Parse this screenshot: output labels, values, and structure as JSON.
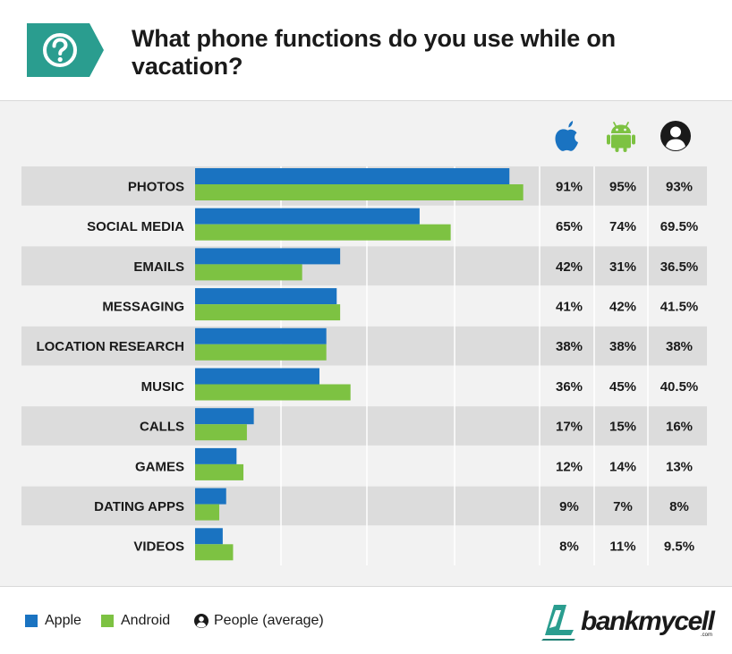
{
  "header": {
    "title": "What phone functions do you use while on vacation?",
    "badge_icon": "question-mark-icon",
    "badge_color": "#2a9d8f"
  },
  "chart_data": {
    "type": "bar",
    "orientation": "horizontal",
    "categories": [
      "PHOTOS",
      "SOCIAL MEDIA",
      "EMAILS",
      "MESSAGING",
      "LOCATION RESEARCH",
      "MUSIC",
      "CALLS",
      "GAMES",
      "DATING APPS",
      "VIDEOS"
    ],
    "series": [
      {
        "name": "Apple",
        "color": "#1a73c1",
        "values": [
          91,
          65,
          42,
          41,
          38,
          36,
          17,
          12,
          9,
          8
        ]
      },
      {
        "name": "Android",
        "color": "#7dc242",
        "values": [
          95,
          74,
          31,
          42,
          38,
          45,
          15,
          14,
          7,
          11
        ]
      }
    ],
    "table": {
      "column_icons": [
        "apple-icon",
        "android-icon",
        "person-icon"
      ],
      "apple": [
        "91%",
        "65%",
        "42%",
        "41%",
        "38%",
        "36%",
        "17%",
        "12%",
        "9%",
        "8%"
      ],
      "android": [
        "95%",
        "74%",
        "31%",
        "42%",
        "38%",
        "45%",
        "15%",
        "14%",
        "7%",
        "11%"
      ],
      "average": [
        "93%",
        "69.5%",
        "36.5%",
        "41.5%",
        "38%",
        "40.5%",
        "16%",
        "13%",
        "8%",
        "9.5%"
      ]
    },
    "xlim": [
      0,
      100
    ],
    "grid": true,
    "legend": "bottom-left"
  },
  "legend": {
    "apple_label": "Apple",
    "android_label": "Android",
    "people_label": "People (average)",
    "people_icon": "person-icon"
  },
  "brand": {
    "name": "bankmycell",
    "suffix": ".com",
    "logo_icon": "bankmycell-logo-icon",
    "color": "#2a9d8f"
  }
}
